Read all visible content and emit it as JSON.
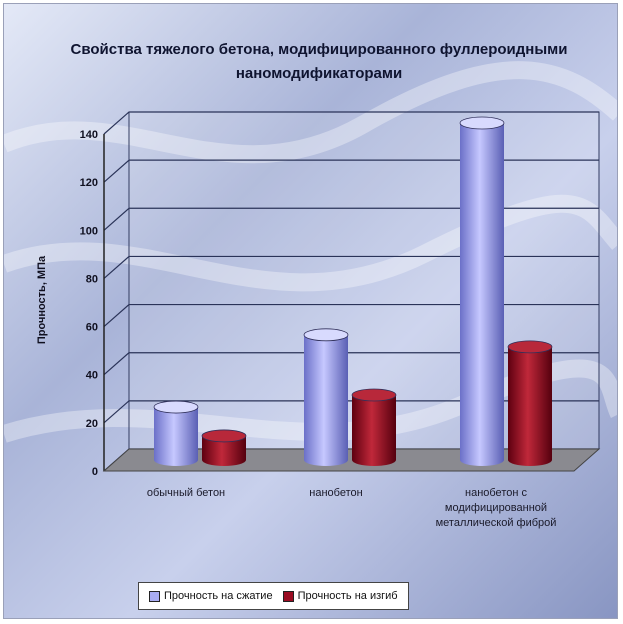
{
  "chart_data": {
    "type": "bar",
    "title": "Свойства тяжелого бетона, модифицированного фуллероидными наномодификаторами",
    "xlabel": "",
    "ylabel": "Прочность, МПа",
    "categories": [
      "обычный бетон",
      "нанобетон",
      "нанобетон с модифицированной металлической фиброй"
    ],
    "series": [
      {
        "name": "Прочность на сжатие",
        "values": [
          22,
          52,
          140
        ],
        "color": "#a9acf2"
      },
      {
        "name": "Прочность на изгиб",
        "values": [
          10,
          27,
          47
        ],
        "color": "#9a0c22"
      }
    ],
    "ylim": [
      0,
      140
    ],
    "yticks": [
      "0",
      "20",
      "40",
      "60",
      "80",
      "100",
      "120",
      "140"
    ],
    "grid": true,
    "legend": "bottom"
  }
}
